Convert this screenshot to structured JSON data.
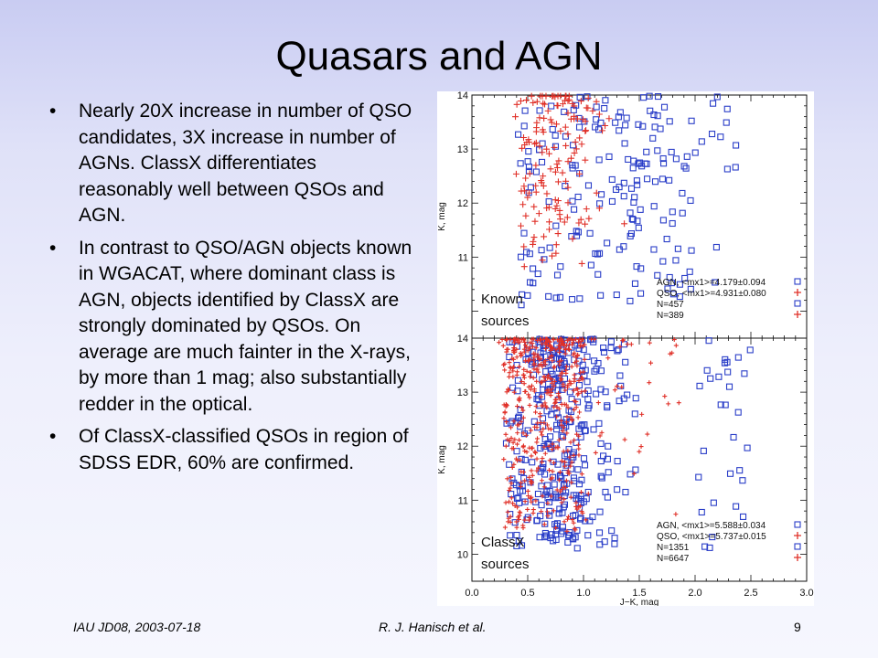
{
  "slide": {
    "title": "Quasars and AGN",
    "bullets": [
      "Nearly 20X increase in number of QSO candidates, 3X increase in number of AGNs.  ClassX differentiates reasonably well between QSOs and AGN.",
      "In contrast to QSO/AGN objects known in WGACAT, where dominant class is AGN, objects identified by ClassX are strongly dominated by QSOs. On average are much fainter in the X-rays, by more than 1 mag; also substantially redder in the optical.",
      "Of ClassX-classified QSOs in region of SDSS EDR, 60% are confirmed."
    ],
    "bullet_glyph": "•"
  },
  "footer": {
    "left": "IAU JD08, 2003-07-18",
    "center": "R. J. Hanisch et al.",
    "page_number": "9"
  },
  "chart_data": [
    {
      "type": "scatter",
      "panel": "Known sources",
      "panel_label_lines": [
        "Known",
        "sources"
      ],
      "xlabel": "J−K, mag",
      "ylabel": "K, mag",
      "xlim": [
        0.0,
        3.0
      ],
      "ylim": [
        9.5,
        14.0
      ],
      "y_inverted": false,
      "x_ticks": [],
      "y_ticks": [
        "11",
        "12",
        "13",
        "14"
      ],
      "legend_position": "bottom-right",
      "legend": [
        {
          "text": "AGN, <mx1>=4.179±0.094",
          "marker": "square",
          "color": "#2a3ec8"
        },
        {
          "text": "QSO, <mx1>=4.931±0.080",
          "marker": "plus",
          "color": "#e03028"
        },
        {
          "text": "N=457",
          "marker": "square",
          "color": "#2a3ec8"
        },
        {
          "text": "N=389",
          "marker": "plus",
          "color": "#e03028"
        }
      ],
      "series": [
        {
          "name": "AGN",
          "marker": "square",
          "color": "#2a3ec8",
          "count": 457,
          "approx_x_range": [
            0.3,
            2.4
          ],
          "approx_y_range": [
            10.0,
            14.0
          ]
        },
        {
          "name": "QSO",
          "marker": "plus",
          "color": "#e03028",
          "count": 389,
          "approx_x_range": [
            0.2,
            2.1
          ],
          "approx_y_range": [
            10.8,
            14.0
          ]
        }
      ]
    },
    {
      "type": "scatter",
      "panel": "ClassX sources",
      "panel_label_lines": [
        "ClassX",
        "sources"
      ],
      "xlabel": "J−K, mag",
      "ylabel": "K, mag",
      "xlim": [
        0.0,
        3.0
      ],
      "ylim": [
        9.5,
        14.0
      ],
      "y_inverted": false,
      "x_ticks": [
        "0.0",
        "0.5",
        "1.0",
        "1.5",
        "2.0",
        "2.5",
        "3.0"
      ],
      "y_ticks": [
        "10",
        "11",
        "12",
        "13",
        "14"
      ],
      "legend_position": "bottom-right",
      "legend": [
        {
          "text": "AGN, <mx1>=5.588±0.034",
          "marker": "square",
          "color": "#2a3ec8"
        },
        {
          "text": "QSO, <mx1>=5.737±0.015",
          "marker": "plus",
          "color": "#e03028"
        },
        {
          "text": "N=1351",
          "marker": "square",
          "color": "#2a3ec8"
        },
        {
          "text": "N=6647",
          "marker": "plus",
          "color": "#e03028"
        }
      ],
      "series": [
        {
          "name": "AGN",
          "marker": "square",
          "color": "#2a3ec8",
          "count": 1351,
          "approx_x_range": [
            0.2,
            2.5
          ],
          "approx_y_range": [
            10.0,
            14.0
          ]
        },
        {
          "name": "QSO",
          "marker": "plus",
          "color": "#e03028",
          "count": 6647,
          "approx_x_range": [
            0.2,
            2.0
          ],
          "approx_y_range": [
            10.3,
            14.0
          ]
        }
      ]
    }
  ]
}
